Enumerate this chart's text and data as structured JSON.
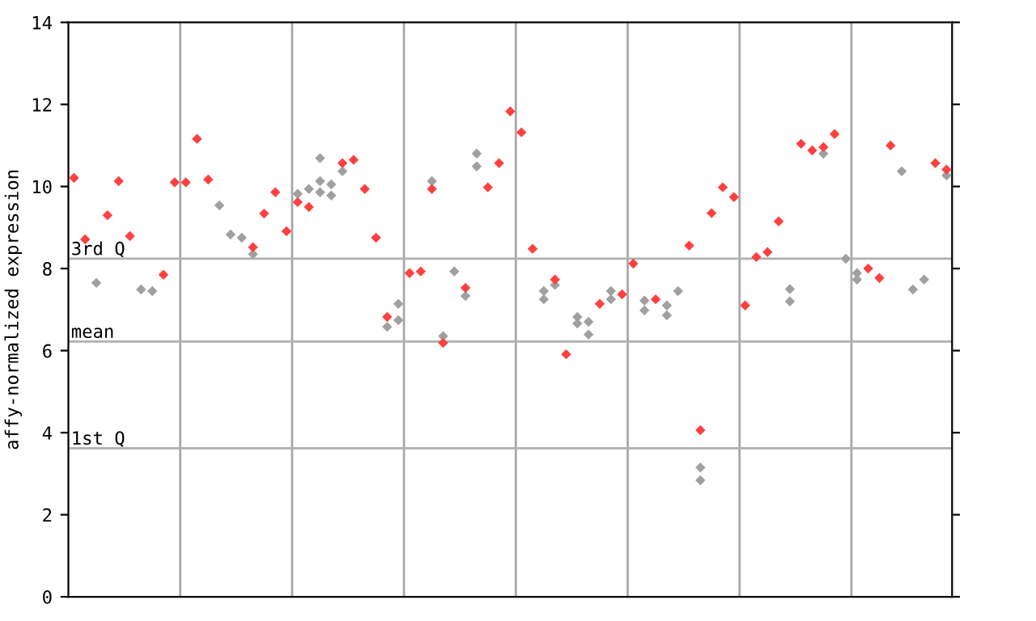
{
  "chart_data": {
    "type": "scatter",
    "ylabel": "affy-normalized expression",
    "categories": [
      null,
      null,
      null,
      null,
      null,
      null,
      null,
      null,
      null,
      null,
      null,
      null,
      null,
      null,
      null,
      null,
      null,
      null,
      null,
      null,
      null,
      null,
      null,
      null,
      null,
      null,
      null,
      null,
      null,
      null,
      null,
      null,
      null,
      null,
      null,
      null,
      null,
      null,
      null,
      null,
      null,
      null,
      null,
      null,
      null,
      null,
      null,
      null,
      null,
      null,
      null,
      null,
      null,
      null,
      null,
      null,
      null,
      null,
      null,
      null,
      null,
      null,
      null,
      null,
      null,
      null,
      null,
      null,
      null,
      null,
      null,
      null,
      null,
      null,
      null,
      null,
      null,
      null,
      null
    ],
    "ylim": [
      0,
      14
    ],
    "yticks": [
      0,
      2,
      4,
      6,
      8,
      10,
      12,
      14
    ],
    "tick_labels": "y",
    "marker": "diamond",
    "ref_lines": [
      {
        "axis": "y",
        "value": 8.24,
        "label": "3rd Q",
        "color": "#b0b0b0"
      },
      {
        "axis": "y",
        "value": 6.22,
        "label": "mean",
        "color": "#b0b0b0"
      },
      {
        "axis": "y",
        "value": 3.62,
        "label": "1st Q",
        "color": "#b0b0b0"
      }
    ],
    "series": [
      {
        "color": "#a0a0a0",
        "values": [
          null,
          null,
          7.65,
          null,
          null,
          null,
          7.49,
          7.45,
          null,
          null,
          null,
          null,
          null,
          9.54,
          8.83,
          8.75,
          8.35,
          null,
          null,
          null,
          9.82,
          9.94,
          10.69,
          10.05,
          10.37,
          null,
          null,
          null,
          6.58,
          7.14,
          null,
          null,
          10.13,
          6.35,
          7.93,
          7.33,
          10.8,
          null,
          null,
          null,
          null,
          null,
          7.45,
          7.6,
          null,
          6.82,
          6.7,
          null,
          7.45,
          null,
          null,
          7.22,
          null,
          7.1,
          7.45,
          null,
          3.15,
          null,
          null,
          null,
          null,
          null,
          null,
          null,
          7.5,
          null,
          null,
          10.8,
          null,
          8.24,
          7.89,
          null,
          null,
          null,
          10.37,
          7.49,
          7.73,
          null,
          10.27
        ]
      },
      {
        "color": "#a0a0a0",
        "values": [
          null,
          null,
          null,
          null,
          null,
          null,
          null,
          null,
          null,
          null,
          null,
          null,
          null,
          null,
          null,
          null,
          null,
          null,
          null,
          null,
          null,
          null,
          10.13,
          9.78,
          null,
          null,
          null,
          null,
          null,
          6.74,
          null,
          null,
          null,
          null,
          null,
          null,
          10.49,
          null,
          null,
          null,
          null,
          null,
          7.25,
          null,
          null,
          6.66,
          6.39,
          null,
          7.25,
          null,
          null,
          6.98,
          null,
          6.86,
          null,
          null,
          2.84,
          null,
          null,
          null,
          null,
          null,
          null,
          null,
          7.2,
          null,
          null,
          null,
          null,
          null,
          7.73,
          null,
          null,
          null,
          null,
          null,
          null,
          null,
          null
        ]
      },
      {
        "color": "#a0a0a0",
        "values": [
          null,
          null,
          null,
          null,
          null,
          null,
          null,
          null,
          null,
          null,
          null,
          null,
          null,
          null,
          null,
          null,
          null,
          null,
          null,
          null,
          null,
          null,
          9.86,
          null,
          null,
          null,
          null,
          null,
          null,
          null,
          null,
          null,
          null,
          null,
          null,
          null,
          null,
          null,
          null,
          null,
          null,
          null,
          null,
          null,
          null,
          null,
          null,
          null,
          null,
          null,
          null,
          null,
          null,
          null,
          null,
          null,
          null,
          null,
          null,
          null,
          null,
          null,
          null,
          null,
          null,
          null,
          null,
          null,
          null,
          null,
          null,
          null,
          null,
          null,
          null,
          null,
          null,
          null,
          null
        ]
      },
      {
        "color": "#ff4040",
        "values": [
          10.21,
          8.71,
          null,
          9.3,
          10.13,
          8.79,
          null,
          null,
          7.85,
          10.1,
          10.1,
          11.16,
          10.17,
          null,
          null,
          null,
          8.52,
          9.34,
          9.86,
          8.91,
          9.62,
          9.5,
          null,
          null,
          10.57,
          10.65,
          9.94,
          8.75,
          6.82,
          null,
          7.89,
          7.93,
          9.94,
          6.19,
          null,
          7.53,
          null,
          9.98,
          10.57,
          11.83,
          11.32,
          8.48,
          null,
          7.73,
          5.91,
          null,
          null,
          7.14,
          null,
          7.37,
          8.12,
          null,
          7.25,
          null,
          null,
          8.56,
          4.06,
          9.35,
          9.98,
          9.74,
          7.1,
          8.28,
          8.4,
          9.15,
          null,
          11.04,
          10.88,
          10.96,
          11.28,
          null,
          null,
          8.0,
          7.77,
          11.0,
          null,
          null,
          null,
          10.57,
          10.41
        ]
      }
    ]
  }
}
